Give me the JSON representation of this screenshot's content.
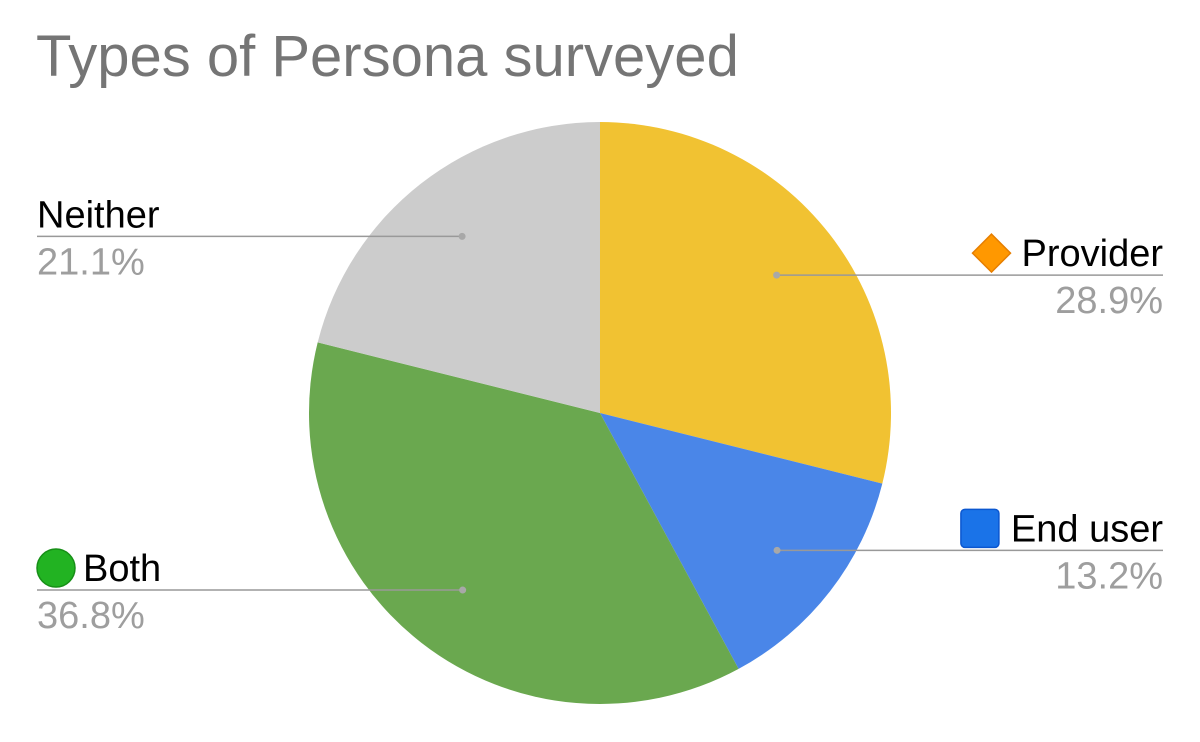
{
  "chart_data": {
    "type": "pie",
    "title": "Types of Persona surveyed",
    "slices": [
      {
        "label": "Provider",
        "value": 28.9,
        "percent_label": "28.9%",
        "color": "#f1c232",
        "label_side": "right",
        "emoji": "orange-diamond-icon"
      },
      {
        "label": "End user",
        "value": 13.2,
        "percent_label": "13.2%",
        "color": "#4a86e8",
        "label_side": "right",
        "emoji": "blue-square-icon"
      },
      {
        "label": "Both",
        "value": 36.8,
        "percent_label": "36.8%",
        "color": "#6aa84f",
        "label_side": "left",
        "emoji": "green-circle-icon"
      },
      {
        "label": "Neither",
        "value": 21.1,
        "percent_label": "21.1%",
        "color": "#cccccc",
        "label_side": "left",
        "emoji": ""
      }
    ],
    "start_angle": "12 o'clock",
    "direction": "clockwise",
    "legend": "none",
    "label_colors": {
      "name": "#000000",
      "percent": "#9e9e9e",
      "leader": "#999999"
    }
  }
}
